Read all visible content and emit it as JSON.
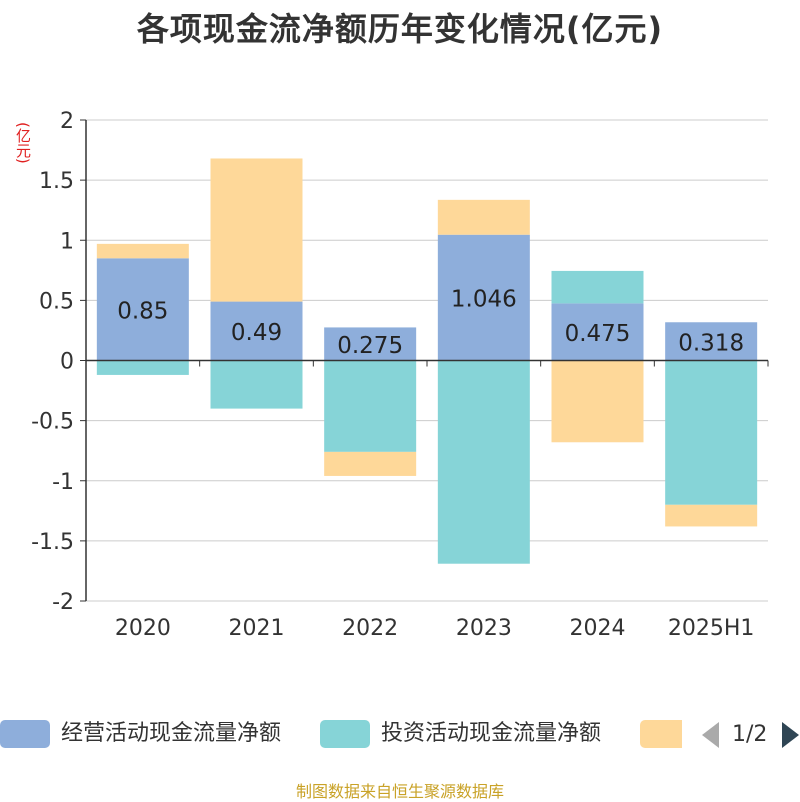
{
  "colors": {
    "operating": "#8eaedb",
    "investing": "#86d4d7",
    "financing": "#fed899",
    "axis": "#333333",
    "grid": "#cccccc",
    "title": "#333333",
    "unit": "#e02020",
    "source": "#c9a227",
    "pager_prev": "#aaaaaa",
    "pager_next": "#2f4554"
  },
  "legend": {
    "items": [
      {
        "label": "经营活动现金流量净额",
        "color": "#8eaedb"
      },
      {
        "label": "投资活动现金流量净额",
        "color": "#86d4d7"
      },
      {
        "label": "",
        "color": "#fed899"
      }
    ],
    "page": "1/2"
  },
  "source": "制图数据来自恒生聚源数据库",
  "chart_data": {
    "type": "bar",
    "stacked": true,
    "title": "各项现金流净额历年变化情况(亿元)",
    "unit": "(亿元)",
    "xlabel": "",
    "ylabel": "",
    "categories": [
      "2020",
      "2021",
      "2022",
      "2023",
      "2024",
      "2025H1"
    ],
    "ylim": [
      -2,
      2
    ],
    "yticks": [
      2,
      1.5,
      1,
      0.5,
      0,
      -0.5,
      -1,
      -1.5,
      -2
    ],
    "ytick_labels": [
      "2",
      "1.5",
      "1",
      "0.5",
      "0",
      "-0.5",
      "-1",
      "-1.5",
      "-2"
    ],
    "grid": true,
    "legend_position": "bottom",
    "series": [
      {
        "name": "经营活动现金流量净额",
        "values": [
          0.85,
          0.49,
          0.275,
          1.046,
          0.475,
          0.318
        ],
        "labels": [
          "0.85",
          "0.49",
          "0.275",
          "1.046",
          "0.475",
          "0.318"
        ]
      },
      {
        "name": "投资活动现金流量净额",
        "values": [
          -0.12,
          -0.4,
          -0.76,
          -1.69,
          0.27,
          -1.2
        ]
      },
      {
        "name": "",
        "values": [
          0.12,
          1.19,
          -0.2,
          0.29,
          -0.68,
          -0.18
        ]
      }
    ]
  }
}
